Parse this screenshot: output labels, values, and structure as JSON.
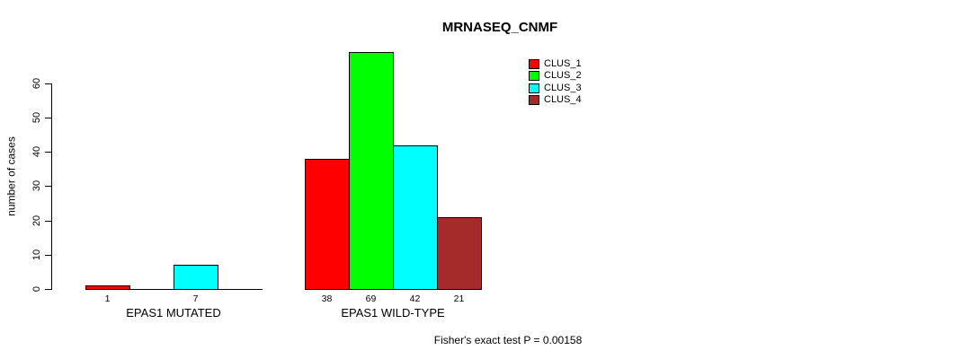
{
  "chart_data": {
    "type": "bar",
    "title": "MRNASEQ_CNMF",
    "ylabel": "number of cases",
    "xlabel": "",
    "yticks": [
      0,
      10,
      20,
      30,
      40,
      50,
      60
    ],
    "ylim": [
      0,
      69
    ],
    "grid": false,
    "annotation": "Fisher's exact test P = 0.00158",
    "series_names": [
      "CLUS_1",
      "CLUS_2",
      "CLUS_3",
      "CLUS_4"
    ],
    "legend": {
      "position": "top-right",
      "entries": [
        {
          "label": "CLUS_1",
          "color": "#ff0000"
        },
        {
          "label": "CLUS_2",
          "color": "#00ff00"
        },
        {
          "label": "CLUS_3",
          "color": "#00ffff"
        },
        {
          "label": "CLUS_4",
          "color": "#a52a2a"
        }
      ]
    },
    "groups": [
      {
        "label": "EPAS1 MUTATED",
        "values": [
          1,
          0,
          7,
          0
        ],
        "bar_labels": [
          "1",
          "",
          "7",
          ""
        ]
      },
      {
        "label": "EPAS1 WILD-TYPE",
        "values": [
          38,
          69,
          42,
          21
        ],
        "bar_labels": [
          "38",
          "69",
          "42",
          "21"
        ]
      }
    ]
  }
}
